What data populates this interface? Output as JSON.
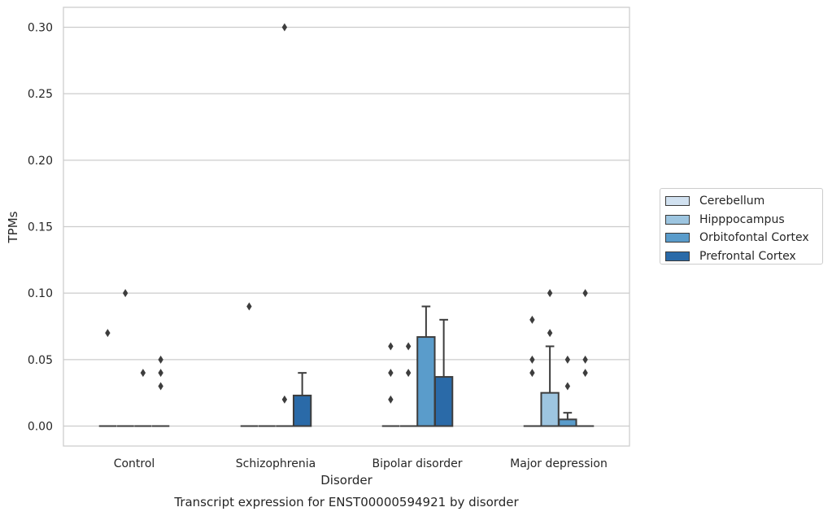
{
  "chart_data": {
    "type": "box",
    "title": "Transcript expression for ENST00000594921 by disorder",
    "xlabel": "Disorder",
    "ylabel": "TPMs",
    "categories": [
      "Control",
      "Schizophrenia",
      "Bipolar disorder",
      "Major depression"
    ],
    "ylim": [
      -0.015,
      0.315
    ],
    "yticks": [
      "0.00",
      "0.05",
      "0.10",
      "0.15",
      "0.20",
      "0.25",
      "0.30"
    ],
    "grid": true,
    "legend_position": "right",
    "series": [
      {
        "name": "Cerebellum",
        "color": "#d1e1f0",
        "boxes": [
          {
            "q1": 0,
            "median": 0,
            "q3": 0,
            "whisker_low": 0,
            "whisker_high": 0,
            "outliers": [
              0.07
            ]
          },
          {
            "q1": 0,
            "median": 0,
            "q3": 0,
            "whisker_low": 0,
            "whisker_high": 0,
            "outliers": [
              0.09
            ]
          },
          {
            "q1": 0,
            "median": 0,
            "q3": 0,
            "whisker_low": 0,
            "whisker_high": 0,
            "outliers": [
              0.02,
              0.04,
              0.06
            ]
          },
          {
            "q1": 0,
            "median": 0,
            "q3": 0,
            "whisker_low": 0,
            "whisker_high": 0,
            "outliers": [
              0.04,
              0.05,
              0.08
            ]
          }
        ]
      },
      {
        "name": "Hipppocampus",
        "color": "#9dc5e0",
        "boxes": [
          {
            "q1": 0,
            "median": 0,
            "q3": 0,
            "whisker_low": 0,
            "whisker_high": 0,
            "outliers": [
              0.1
            ]
          },
          {
            "q1": 0,
            "median": 0,
            "q3": 0,
            "whisker_low": 0,
            "whisker_high": 0,
            "outliers": []
          },
          {
            "q1": 0,
            "median": 0,
            "q3": 0,
            "whisker_low": 0,
            "whisker_high": 0,
            "outliers": [
              0.04,
              0.06
            ]
          },
          {
            "q1": 0,
            "median": 0,
            "q3": 0.025,
            "whisker_low": 0,
            "whisker_high": 0.06,
            "outliers": [
              0.07,
              0.1
            ]
          }
        ]
      },
      {
        "name": "Orbitofontal Cortex",
        "color": "#5a9ccb",
        "boxes": [
          {
            "q1": 0,
            "median": 0,
            "q3": 0,
            "whisker_low": 0,
            "whisker_high": 0,
            "outliers": [
              0.04
            ]
          },
          {
            "q1": 0,
            "median": 0,
            "q3": 0,
            "whisker_low": 0,
            "whisker_high": 0,
            "outliers": [
              0.02,
              0.3
            ]
          },
          {
            "q1": 0,
            "median": 0,
            "q3": 0.067,
            "whisker_low": 0,
            "whisker_high": 0.09,
            "outliers": []
          },
          {
            "q1": 0,
            "median": 0,
            "q3": 0.005,
            "whisker_low": 0,
            "whisker_high": 0.01,
            "outliers": [
              0.03,
              0.05
            ]
          }
        ]
      },
      {
        "name": "Prefrontal Cortex",
        "color": "#2a6aa8",
        "boxes": [
          {
            "q1": 0,
            "median": 0,
            "q3": 0,
            "whisker_low": 0,
            "whisker_high": 0,
            "outliers": [
              0.03,
              0.04,
              0.05
            ]
          },
          {
            "q1": 0,
            "median": 0,
            "q3": 0.023,
            "whisker_low": 0,
            "whisker_high": 0.04,
            "outliers": []
          },
          {
            "q1": 0,
            "median": 0,
            "q3": 0.037,
            "whisker_low": 0,
            "whisker_high": 0.08,
            "outliers": []
          },
          {
            "q1": 0,
            "median": 0,
            "q3": 0,
            "whisker_low": 0,
            "whisker_high": 0,
            "outliers": [
              0.04,
              0.05,
              0.1
            ]
          }
        ]
      }
    ]
  }
}
